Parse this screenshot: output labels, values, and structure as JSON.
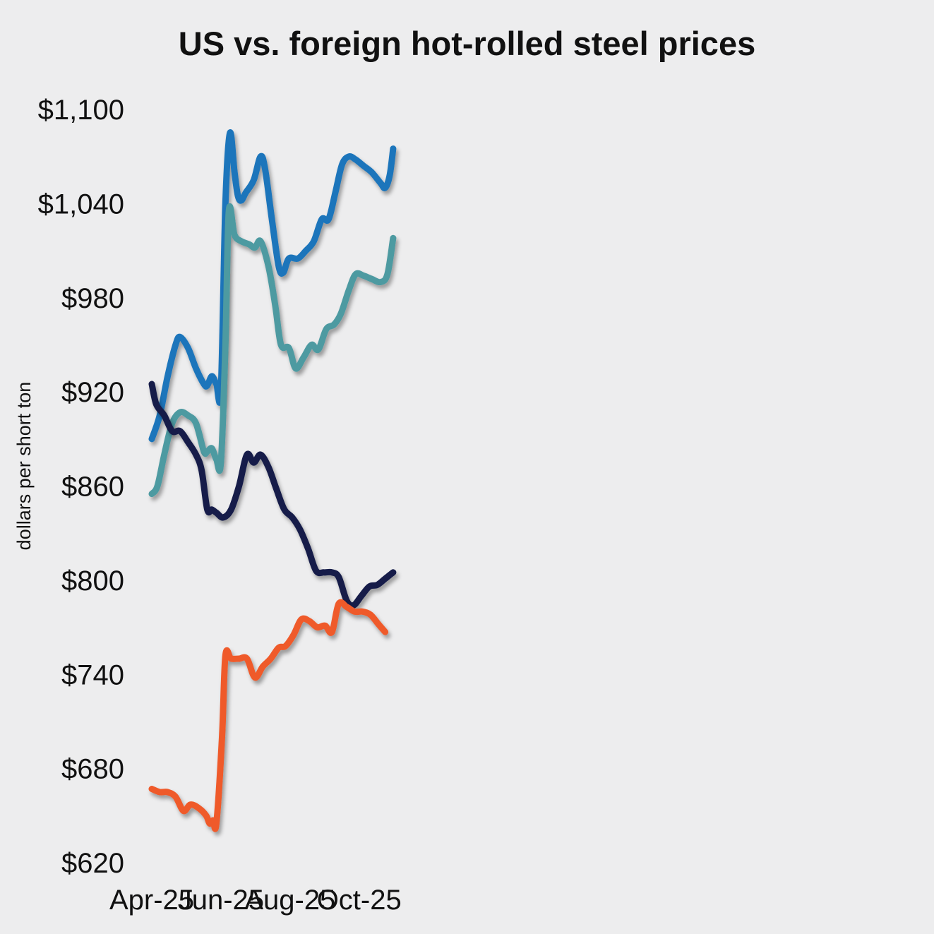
{
  "chart_data": {
    "type": "line",
    "title": "US vs. foreign hot-rolled steel prices",
    "ylabel": "dollars per short ton",
    "xlabel": "",
    "ylim": [
      620,
      1100
    ],
    "grid": false,
    "x_labels": [
      "Apr-25",
      "Jun-25",
      "Aug-25",
      "Oct-25"
    ],
    "y_ticks": [
      {
        "value": 1100,
        "label": "$1,100"
      },
      {
        "value": 1040,
        "label": "$1,040"
      },
      {
        "value": 980,
        "label": "$980"
      },
      {
        "value": 920,
        "label": "$920"
      },
      {
        "value": 860,
        "label": "$860"
      },
      {
        "value": 800,
        "label": "$800"
      },
      {
        "value": 740,
        "label": "$740"
      },
      {
        "value": 680,
        "label": "$680"
      },
      {
        "value": 620,
        "label": "$620"
      }
    ],
    "x_start": "2025-04-01",
    "series": [
      {
        "color": "#1b75bb",
        "points": [
          [
            "2025-04-01",
            890
          ],
          [
            "2025-04-08",
            905
          ],
          [
            "2025-04-15",
            930
          ],
          [
            "2025-04-22",
            950
          ],
          [
            "2025-04-26",
            955
          ],
          [
            "2025-05-03",
            948
          ],
          [
            "2025-05-10",
            935
          ],
          [
            "2025-05-17",
            925
          ],
          [
            "2025-05-20",
            924
          ],
          [
            "2025-05-24",
            930
          ],
          [
            "2025-05-28",
            925
          ],
          [
            "2025-06-01",
            921
          ],
          [
            "2025-06-05",
            1040
          ],
          [
            "2025-06-09",
            1085
          ],
          [
            "2025-06-13",
            1060
          ],
          [
            "2025-06-16",
            1045
          ],
          [
            "2025-06-19",
            1042
          ],
          [
            "2025-06-23",
            1047
          ],
          [
            "2025-06-30",
            1055
          ],
          [
            "2025-07-06",
            1070
          ],
          [
            "2025-07-10",
            1062
          ],
          [
            "2025-07-16",
            1030
          ],
          [
            "2025-07-22",
            1000
          ],
          [
            "2025-07-26",
            996
          ],
          [
            "2025-07-31",
            1005
          ],
          [
            "2025-08-08",
            1005
          ],
          [
            "2025-08-15",
            1010
          ],
          [
            "2025-08-22",
            1016
          ],
          [
            "2025-08-29",
            1030
          ],
          [
            "2025-09-04",
            1030
          ],
          [
            "2025-09-10",
            1047
          ],
          [
            "2025-09-16",
            1065
          ],
          [
            "2025-09-22",
            1070
          ],
          [
            "2025-09-28",
            1068
          ],
          [
            "2025-10-05",
            1064
          ],
          [
            "2025-10-12",
            1060
          ],
          [
            "2025-10-20",
            1053
          ],
          [
            "2025-10-24",
            1050
          ],
          [
            "2025-10-28",
            1058
          ],
          [
            "2025-10-31",
            1075
          ]
        ]
      },
      {
        "color": "#4e9aa1",
        "points": [
          [
            "2025-04-01",
            855
          ],
          [
            "2025-04-06",
            860
          ],
          [
            "2025-04-12",
            880
          ],
          [
            "2025-04-19",
            900
          ],
          [
            "2025-04-26",
            907
          ],
          [
            "2025-05-03",
            905
          ],
          [
            "2025-05-10",
            900
          ],
          [
            "2025-05-17",
            882
          ],
          [
            "2025-05-20",
            882
          ],
          [
            "2025-05-24",
            884
          ],
          [
            "2025-05-28",
            877
          ],
          [
            "2025-06-01",
            875
          ],
          [
            "2025-06-05",
            950
          ],
          [
            "2025-06-08",
            1035
          ],
          [
            "2025-06-13",
            1020
          ],
          [
            "2025-06-19",
            1016
          ],
          [
            "2025-06-26",
            1014
          ],
          [
            "2025-07-01",
            1012
          ],
          [
            "2025-07-06",
            1016
          ],
          [
            "2025-07-13",
            1000
          ],
          [
            "2025-07-19",
            975
          ],
          [
            "2025-07-24",
            950
          ],
          [
            "2025-07-31",
            948
          ],
          [
            "2025-08-06",
            935
          ],
          [
            "2025-08-13",
            942
          ],
          [
            "2025-08-20",
            950
          ],
          [
            "2025-08-26",
            947
          ],
          [
            "2025-09-02",
            960
          ],
          [
            "2025-09-09",
            963
          ],
          [
            "2025-09-15",
            970
          ],
          [
            "2025-09-22",
            985
          ],
          [
            "2025-09-28",
            995
          ],
          [
            "2025-10-05",
            994
          ],
          [
            "2025-10-12",
            992
          ],
          [
            "2025-10-20",
            990
          ],
          [
            "2025-10-26",
            995
          ],
          [
            "2025-10-31",
            1018
          ]
        ]
      },
      {
        "color": "#151d4a",
        "points": [
          [
            "2025-04-01",
            925
          ],
          [
            "2025-04-05",
            912
          ],
          [
            "2025-04-12",
            905
          ],
          [
            "2025-04-19",
            895
          ],
          [
            "2025-04-26",
            895
          ],
          [
            "2025-05-03",
            888
          ],
          [
            "2025-05-10",
            880
          ],
          [
            "2025-05-15",
            870
          ],
          [
            "2025-05-20",
            845
          ],
          [
            "2025-05-24",
            845
          ],
          [
            "2025-05-28",
            843
          ],
          [
            "2025-06-03",
            840
          ],
          [
            "2025-06-10",
            845
          ],
          [
            "2025-06-17",
            860
          ],
          [
            "2025-06-24",
            880
          ],
          [
            "2025-06-30",
            875
          ],
          [
            "2025-07-06",
            880
          ],
          [
            "2025-07-13",
            872
          ],
          [
            "2025-07-20",
            858
          ],
          [
            "2025-07-27",
            845
          ],
          [
            "2025-08-03",
            840
          ],
          [
            "2025-08-10",
            832
          ],
          [
            "2025-08-17",
            820
          ],
          [
            "2025-08-24",
            806
          ],
          [
            "2025-08-31",
            805
          ],
          [
            "2025-09-07",
            805
          ],
          [
            "2025-09-13",
            802
          ],
          [
            "2025-09-20",
            787
          ],
          [
            "2025-09-26",
            784
          ],
          [
            "2025-10-03",
            790
          ],
          [
            "2025-10-10",
            796
          ],
          [
            "2025-10-17",
            797
          ],
          [
            "2025-10-24",
            801
          ],
          [
            "2025-10-31",
            805
          ]
        ]
      },
      {
        "color": "#ef5a2b",
        "points": [
          [
            "2025-04-01",
            667
          ],
          [
            "2025-04-08",
            665
          ],
          [
            "2025-04-15",
            665
          ],
          [
            "2025-04-22",
            662
          ],
          [
            "2025-04-29",
            653
          ],
          [
            "2025-05-05",
            657
          ],
          [
            "2025-05-12",
            655
          ],
          [
            "2025-05-19",
            650
          ],
          [
            "2025-05-22",
            645
          ],
          [
            "2025-05-25",
            647
          ],
          [
            "2025-05-28",
            645
          ],
          [
            "2025-06-02",
            700
          ],
          [
            "2025-06-05",
            752
          ],
          [
            "2025-06-10",
            750
          ],
          [
            "2025-06-17",
            750
          ],
          [
            "2025-06-24",
            750
          ],
          [
            "2025-07-01",
            738
          ],
          [
            "2025-07-08",
            745
          ],
          [
            "2025-07-15",
            750
          ],
          [
            "2025-07-22",
            757
          ],
          [
            "2025-07-28",
            758
          ],
          [
            "2025-08-04",
            765
          ],
          [
            "2025-08-11",
            775
          ],
          [
            "2025-08-18",
            774
          ],
          [
            "2025-08-25",
            770
          ],
          [
            "2025-09-01",
            771
          ],
          [
            "2025-09-07",
            767
          ],
          [
            "2025-09-13",
            785
          ],
          [
            "2025-09-20",
            783
          ],
          [
            "2025-09-27",
            780
          ],
          [
            "2025-10-04",
            780
          ],
          [
            "2025-10-11",
            778
          ],
          [
            "2025-10-18",
            772
          ],
          [
            "2025-10-24",
            767
          ]
        ]
      }
    ]
  }
}
